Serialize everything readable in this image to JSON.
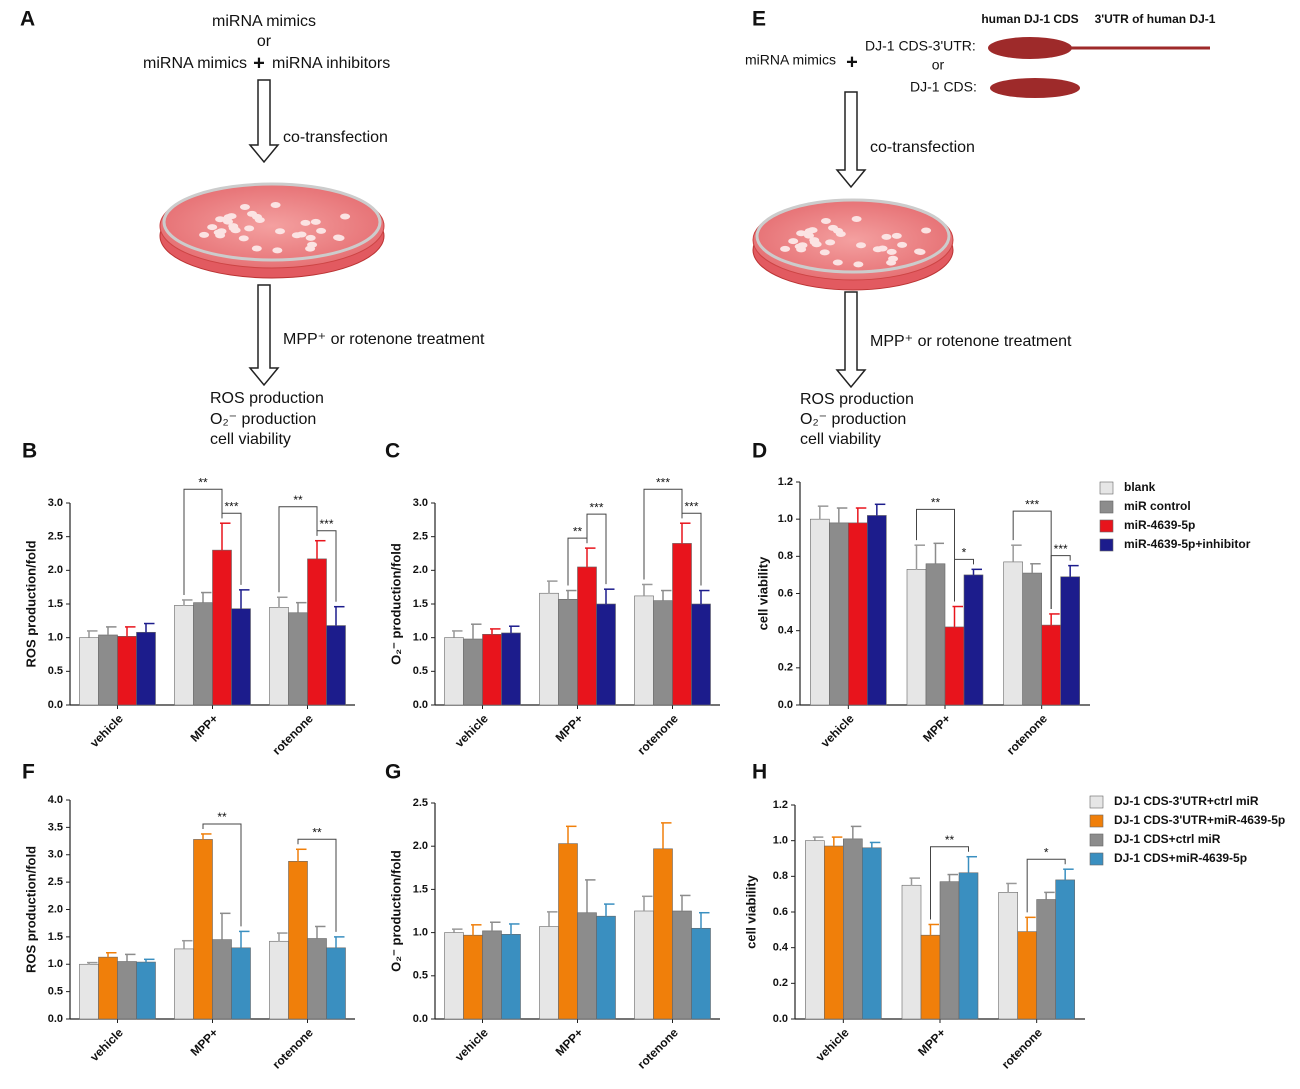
{
  "diagrams": [
    {
      "panel": "A",
      "inputs": [
        "miRNA mimics",
        "or",
        "miRNA mimics",
        "+",
        "miRNA inhibitors"
      ],
      "step1": "co-transfection",
      "step2": "MPP⁺ or rotenone treatment",
      "outputs": [
        "ROS production",
        "O₂⁻ production",
        "cell viability"
      ]
    },
    {
      "panel": "E",
      "constructs": [
        "human DJ-1 CDS",
        "3'UTR of human DJ-1"
      ],
      "inputs": [
        "miRNA mimics",
        "+",
        "DJ-1 CDS-3'UTR:",
        "or",
        "DJ-1 CDS:"
      ],
      "step1": "co-transfection",
      "step2": "MPP⁺ or rotenone treatment",
      "outputs": [
        "ROS production",
        "O₂⁻ production",
        "cell viability"
      ]
    }
  ],
  "chart_data": [
    {
      "type": "bar",
      "panel": "B",
      "ylabel": "ROS production/fold",
      "categories": [
        "vehicle",
        "MPP+",
        "rotenone"
      ],
      "ylim": [
        0,
        3
      ],
      "yticks": [
        {
          "value": 0,
          "label": "0.0"
        },
        0.5,
        {
          "value": 1,
          "label": "1.0"
        },
        1.5,
        {
          "value": 2,
          "label": "2.0"
        },
        2.5,
        {
          "value": 3,
          "label": "3.0"
        }
      ],
      "series": [
        {
          "color": "#e6e6e6",
          "values": [
            1.0,
            1.48,
            1.45
          ],
          "errors": [
            0.1,
            0.08,
            0.15
          ]
        },
        {
          "color": "#8c8c8c",
          "values": [
            1.04,
            1.52,
            1.37
          ],
          "errors": [
            0.12,
            0.15,
            0.15
          ]
        },
        {
          "color": "#e8141c",
          "values": [
            1.02,
            2.3,
            2.17
          ],
          "errors": [
            0.14,
            0.4,
            0.27
          ]
        },
        {
          "color": "#1c1c8c",
          "values": [
            1.08,
            1.43,
            1.18
          ],
          "errors": [
            0.13,
            0.28,
            0.28
          ]
        }
      ],
      "annotations": [
        {
          "text": "***",
          "category": 1,
          "between": [
            2,
            3
          ]
        },
        {
          "text": "**",
          "category": 1,
          "between": [
            0,
            2
          ]
        },
        {
          "text": "***",
          "category": 2,
          "between": [
            2,
            3
          ]
        },
        {
          "text": "**",
          "category": 2,
          "between": [
            0,
            2
          ]
        }
      ]
    },
    {
      "type": "bar",
      "panel": "C",
      "ylabel": "O₂⁻ production/fold",
      "categories": [
        "vehicle",
        "MPP+",
        "rotenone"
      ],
      "ylim": [
        0,
        3
      ],
      "yticks": [
        {
          "value": 0,
          "label": "0.0"
        },
        0.5,
        {
          "value": 1,
          "label": "1.0"
        },
        1.5,
        {
          "value": 2,
          "label": "2.0"
        },
        2.5,
        {
          "value": 3,
          "label": "3.0"
        }
      ],
      "series": [
        {
          "color": "#e6e6e6",
          "values": [
            1.0,
            1.66,
            1.62
          ],
          "errors": [
            0.1,
            0.18,
            0.17
          ]
        },
        {
          "color": "#8c8c8c",
          "values": [
            0.98,
            1.57,
            1.55
          ],
          "errors": [
            0.22,
            0.13,
            0.15
          ]
        },
        {
          "color": "#e8141c",
          "values": [
            1.05,
            2.05,
            2.4
          ],
          "errors": [
            0.08,
            0.28,
            0.3
          ]
        },
        {
          "color": "#1c1c8c",
          "values": [
            1.07,
            1.5,
            1.5
          ],
          "errors": [
            0.1,
            0.22,
            0.2
          ]
        }
      ],
      "annotations": [
        {
          "text": "**",
          "category": 1,
          "between": [
            1,
            2
          ]
        },
        {
          "text": "***",
          "category": 1,
          "between": [
            2,
            3
          ]
        },
        {
          "text": "***",
          "category": 2,
          "between": [
            2,
            3
          ]
        },
        {
          "text": "***",
          "category": 2,
          "between": [
            0,
            2
          ]
        }
      ]
    },
    {
      "type": "bar",
      "panel": "D",
      "ylabel": "cell viability",
      "categories": [
        "vehicle",
        "MPP+",
        "rotenone"
      ],
      "legend": "right",
      "ylim": [
        0,
        1.2
      ],
      "yticks": [
        {
          "value": 0,
          "label": "0.0"
        },
        0.2,
        0.4,
        0.6,
        0.8,
        {
          "value": 1,
          "label": "1.0"
        },
        1.2
      ],
      "series": [
        {
          "name": "blank",
          "color": "#e6e6e6",
          "values": [
            1.0,
            0.73,
            0.77
          ],
          "errors": [
            0.07,
            0.13,
            0.09
          ]
        },
        {
          "name": "miR control",
          "color": "#8c8c8c",
          "values": [
            0.98,
            0.76,
            0.71
          ],
          "errors": [
            0.08,
            0.11,
            0.05
          ]
        },
        {
          "name": "miR-4639-5p",
          "color": "#e8141c",
          "values": [
            0.98,
            0.42,
            0.43
          ],
          "errors": [
            0.08,
            0.11,
            0.06
          ]
        },
        {
          "name": "miR-4639-5p+inhibitor",
          "color": "#1c1c8c",
          "values": [
            1.02,
            0.7,
            0.69
          ],
          "errors": [
            0.06,
            0.03,
            0.06
          ]
        }
      ],
      "annotations": [
        {
          "text": "*",
          "category": 1,
          "between": [
            2,
            3
          ]
        },
        {
          "text": "**",
          "category": 1,
          "between": [
            0,
            2
          ]
        },
        {
          "text": "***",
          "category": 2,
          "between": [
            2,
            3
          ]
        },
        {
          "text": "***",
          "category": 2,
          "between": [
            0,
            2
          ]
        }
      ]
    },
    {
      "type": "bar",
      "panel": "F",
      "ylabel": "ROS production/fold",
      "categories": [
        "vehicle",
        "MPP+",
        "rotenone"
      ],
      "ylim": [
        0,
        4
      ],
      "yticks": [
        {
          "value": 0,
          "label": "0.0"
        },
        0.5,
        {
          "value": 1,
          "label": "1.0"
        },
        1.5,
        {
          "value": 2,
          "label": "2.0"
        },
        2.5,
        {
          "value": 3,
          "label": "3.0"
        },
        3.5,
        {
          "value": 4,
          "label": "4.0"
        }
      ],
      "series": [
        {
          "color": "#e6e6e6",
          "values": [
            1.0,
            1.28,
            1.42
          ],
          "errors": [
            0.03,
            0.15,
            0.15
          ]
        },
        {
          "color": "#f07f0a",
          "values": [
            1.13,
            3.28,
            2.88
          ],
          "errors": [
            0.08,
            0.1,
            0.22
          ]
        },
        {
          "color": "#8c8c8c",
          "values": [
            1.05,
            1.45,
            1.47
          ],
          "errors": [
            0.13,
            0.48,
            0.22
          ]
        },
        {
          "color": "#3a8fc0",
          "values": [
            1.04,
            1.3,
            1.3
          ],
          "errors": [
            0.05,
            0.3,
            0.2
          ]
        }
      ],
      "annotations": [
        {
          "text": "**",
          "category": 1,
          "between": [
            1,
            3
          ]
        },
        {
          "text": "**",
          "category": 2,
          "between": [
            1,
            3
          ]
        }
      ]
    },
    {
      "type": "bar",
      "panel": "G",
      "ylabel": "O₂⁻ production/fold",
      "categories": [
        "vehicle",
        "MPP+",
        "rotenone"
      ],
      "ylim": [
        0,
        2.5
      ],
      "yticks": [
        {
          "value": 0,
          "label": "0.0"
        },
        0.5,
        {
          "value": 1,
          "label": "1.0"
        },
        1.5,
        {
          "value": 2,
          "label": "2.0"
        },
        2.5
      ],
      "series": [
        {
          "color": "#e6e6e6",
          "values": [
            1.0,
            1.07,
            1.25
          ],
          "errors": [
            0.04,
            0.17,
            0.17
          ]
        },
        {
          "color": "#f07f0a",
          "values": [
            0.97,
            2.03,
            1.97
          ],
          "errors": [
            0.12,
            0.2,
            0.3
          ]
        },
        {
          "color": "#8c8c8c",
          "values": [
            1.02,
            1.23,
            1.25
          ],
          "errors": [
            0.1,
            0.38,
            0.18
          ]
        },
        {
          "color": "#3a8fc0",
          "values": [
            0.98,
            1.19,
            1.05
          ],
          "errors": [
            0.12,
            0.14,
            0.18
          ]
        }
      ]
    },
    {
      "type": "bar",
      "panel": "H",
      "ylabel": "cell viability",
      "categories": [
        "vehicle",
        "MPP+",
        "rotenone"
      ],
      "legend": "right",
      "ylim": [
        0,
        1.2
      ],
      "yticks": [
        {
          "value": 0,
          "label": "0.0"
        },
        0.2,
        0.4,
        0.6,
        0.8,
        {
          "value": 1,
          "label": "1.0"
        },
        1.2
      ],
      "series": [
        {
          "name": "DJ-1 CDS-3'UTR+ctrl miR",
          "color": "#e6e6e6",
          "values": [
            1.0,
            0.75,
            0.71
          ],
          "errors": [
            0.02,
            0.04,
            0.05
          ]
        },
        {
          "name": "DJ-1 CDS-3'UTR+miR-4639-5p",
          "color": "#f07f0a",
          "values": [
            0.97,
            0.47,
            0.49
          ],
          "errors": [
            0.05,
            0.06,
            0.08
          ]
        },
        {
          "name": "DJ-1 CDS+ctrl miR",
          "color": "#8c8c8c",
          "values": [
            1.01,
            0.77,
            0.67
          ],
          "errors": [
            0.07,
            0.04,
            0.04
          ]
        },
        {
          "name": "DJ-1 CDS+miR-4639-5p",
          "color": "#3a8fc0",
          "values": [
            0.96,
            0.82,
            0.78
          ],
          "errors": [
            0.03,
            0.09,
            0.06
          ]
        }
      ],
      "annotations": [
        {
          "text": "**",
          "category": 1,
          "between": [
            1,
            3
          ]
        },
        {
          "text": "*",
          "category": 2,
          "between": [
            1,
            3
          ]
        }
      ]
    }
  ]
}
